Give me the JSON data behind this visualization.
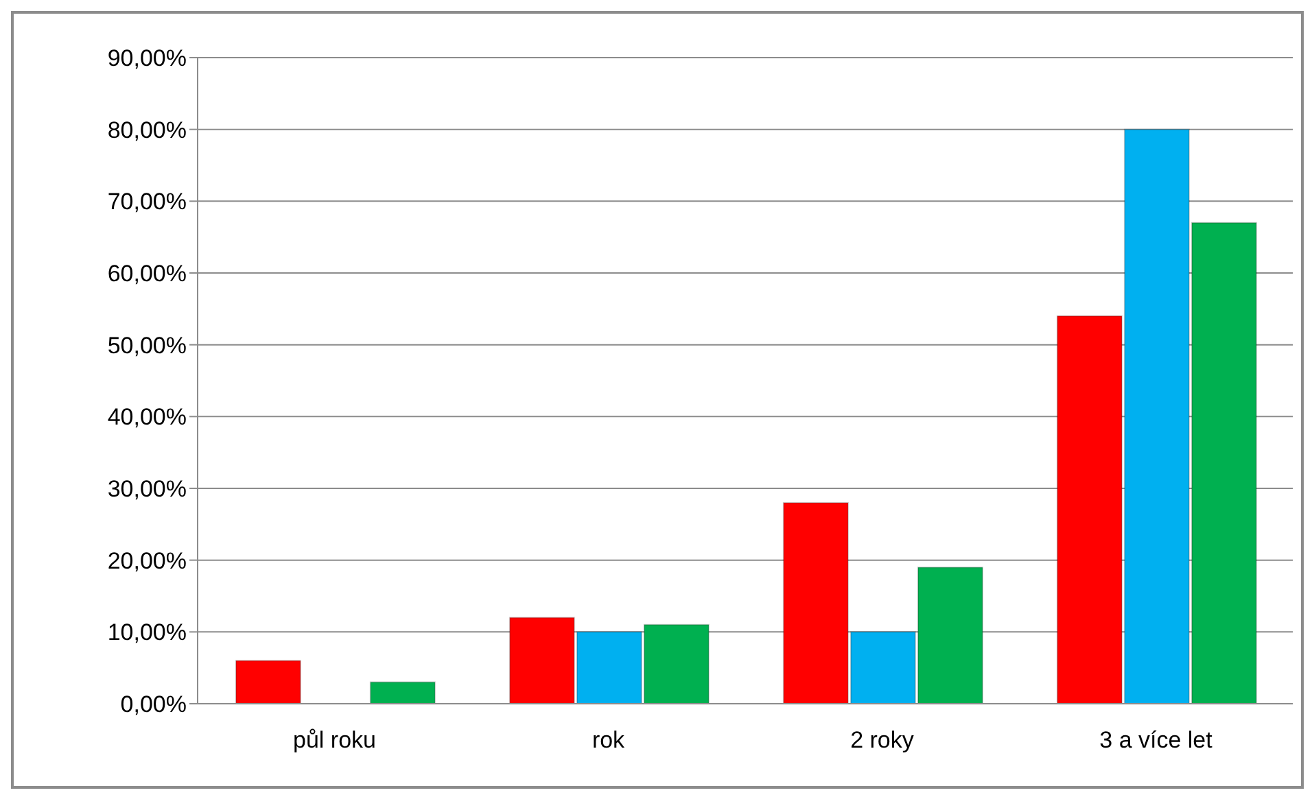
{
  "chart_data": {
    "type": "bar",
    "categories": [
      "půl roku",
      "rok",
      "2 roky",
      "3 a více let"
    ],
    "series": [
      {
        "color": "#ff0000",
        "values": [
          6,
          12,
          28,
          54
        ]
      },
      {
        "color": "#00b0f0",
        "values": [
          0,
          10,
          10,
          80
        ]
      },
      {
        "color": "#00b050",
        "values": [
          3,
          11,
          19,
          67
        ]
      }
    ],
    "ylim": [
      0,
      90
    ],
    "yticks": [
      {
        "value": 0,
        "label": "0,00%"
      },
      {
        "value": 10,
        "label": "10,00%"
      },
      {
        "value": 20,
        "label": "20,00%"
      },
      {
        "value": 30,
        "label": "30,00%"
      },
      {
        "value": 40,
        "label": "40,00%"
      },
      {
        "value": 50,
        "label": "50,00%"
      },
      {
        "value": 60,
        "label": "60,00%"
      },
      {
        "value": 70,
        "label": "70,00%"
      },
      {
        "value": 80,
        "label": "80,00%"
      },
      {
        "value": 90,
        "label": "90,00%"
      }
    ],
    "grid": "y",
    "legend": false
  }
}
